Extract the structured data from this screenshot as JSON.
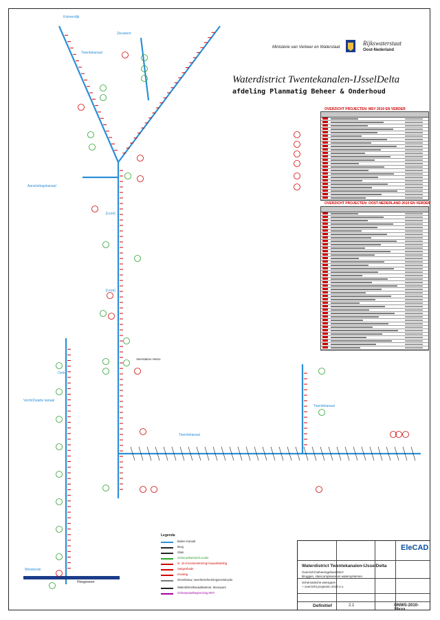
{
  "header": {
    "ministry": "Ministerie van Verkeer en Waterstaat",
    "agency": "Rijkswaterstaat",
    "region": "Oost-Nederland",
    "title": "Waterdistrict Twentekanalen-IJsselDelta",
    "subtitle": "afdeling Planmatig Beheer & Onderhoud"
  },
  "tables": {
    "t1_title": "OVERZICHT PROJECTEN: MSY 2010 EN VERDER",
    "t2_title": "OVERZICHT PROJECTEN: OOST-NEDERLAND 2010 EN VERDER"
  },
  "map": {
    "labels": {
      "kolmerdijk": "Kolmerdijk",
      "zieuwent": "Zieuwent",
      "twentekanaal": "Twentekanaal",
      "afgedamde_maas": "Aansluitingskanaal",
      "lochem": "[Leze]",
      "lochemerkanaal": "[Leze]",
      "vechtpl": "Vecht/Zwarte kanaal",
      "overijssel": "Ovrk",
      "twk_zijkanaal": "Twentekanaal",
      "hengelo": "Twentekanaal",
      "westerkanaal": "Westeinde",
      "hoogeveen": "Hoogeveen",
      "veerstation": "Veerstation Heino"
    }
  },
  "legend": {
    "title": "Legenda",
    "items": [
      {
        "label": "Buiten Kanaal",
        "color": "#2a8fd6"
      },
      {
        "label": "Brug",
        "color": "#222222"
      },
      {
        "label": "Sluis",
        "color": "#222222"
      },
      {
        "label": "Gebouw/kantoor/Locatie",
        "color": "#2aa02a"
      },
      {
        "label": "nr. 10.5 hectometrering/ kanaalindeling",
        "color": "#d00000"
      },
      {
        "label": "Steiger/kade",
        "color": "#d00000"
      },
      {
        "label": "Kruising",
        "color": "#d00000"
      },
      {
        "label": "Oeverbouw, oeverbeschermingsconstructie",
        "color": "#777777"
      },
      {
        "label": "Waterdistrictkanaalkantoor, Steunpunt",
        "color": "#222222"
      },
      {
        "label": "Scheepvaartbegrenzing MSY",
        "color": "#a000a0"
      }
    ]
  },
  "titleblock": {
    "district": "Waterdistrict Twentekanalen-IJsselDelta",
    "desc1": "Overzicht beheersgebied MSY",
    "desc2": "Bruggen, sluiscomplexen en watersystemen",
    "desc3": "Schematische weergave",
    "desc4": "+ overzicht projecten 2010 e.v.",
    "status": "Definitief",
    "rev": "2.1",
    "dwg": "ONWS-2010-19xxx",
    "brand": "EleCAD"
  },
  "colors": {
    "canal": "#2a8fd6",
    "marker": "#d00000",
    "green": "#2aa02a",
    "navy": "#1a3c8a"
  }
}
